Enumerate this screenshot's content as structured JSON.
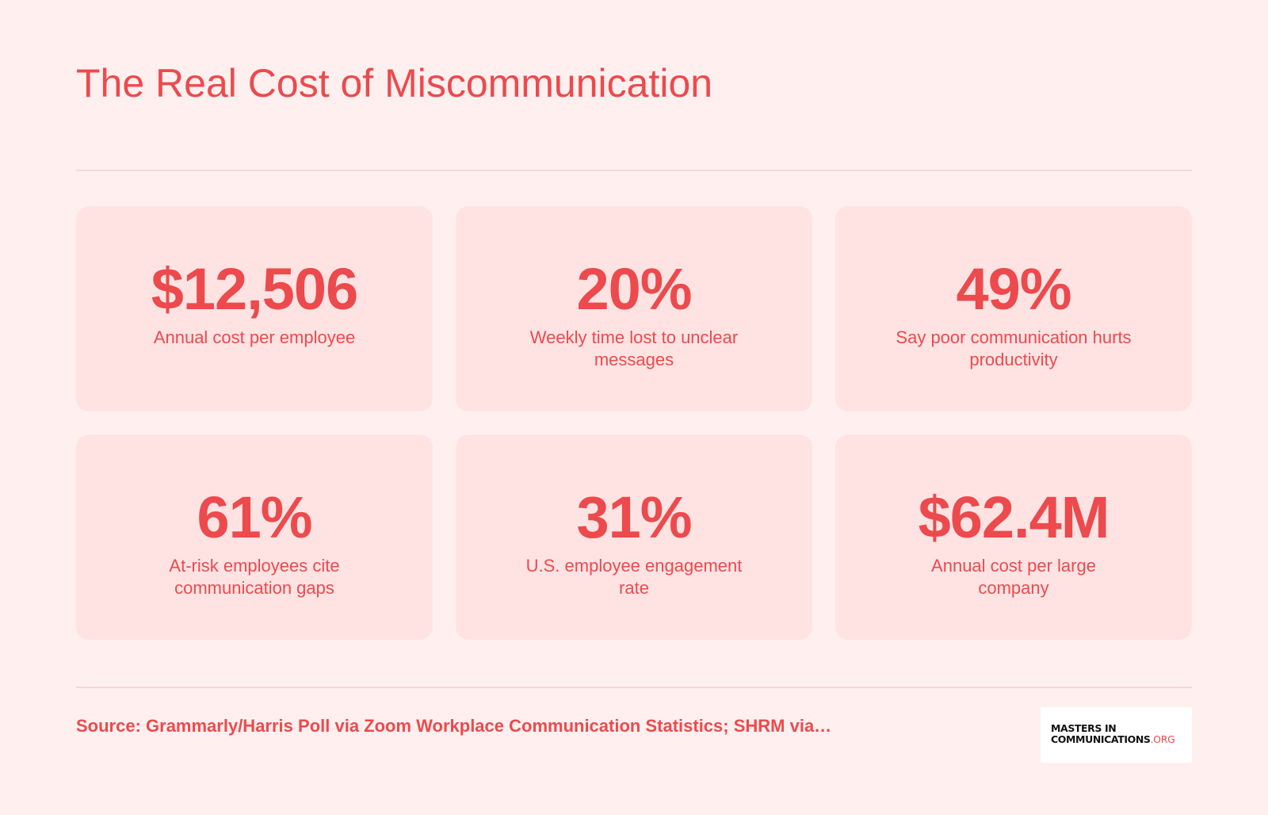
{
  "title": "The Real Cost of Miscommunication",
  "stats": [
    {
      "value": "$12,506",
      "label": "Annual cost per employee"
    },
    {
      "value": "20%",
      "label": "Weekly time lost to unclear messages"
    },
    {
      "value": "49%",
      "label": "Say poor communication hurts productivity"
    },
    {
      "value": "61%",
      "label": "At-risk employees cite communication gaps"
    },
    {
      "value": "31%",
      "label": "U.S. employee engagement rate"
    },
    {
      "value": "$62.4M",
      "label": "Annual cost per large company"
    }
  ],
  "source": "Source: Grammarly/Harris Poll via Zoom Workplace Communication Statistics; SHRM via…",
  "logo": {
    "line1": "MASTERS IN",
    "line2": "COMMUNICATIONS",
    "suffix": ".ORG"
  },
  "colors": {
    "background": "#fff0ef",
    "card": "#ffe3e3",
    "accent": "#ec4a4d",
    "rule": "#f7d6d4"
  }
}
